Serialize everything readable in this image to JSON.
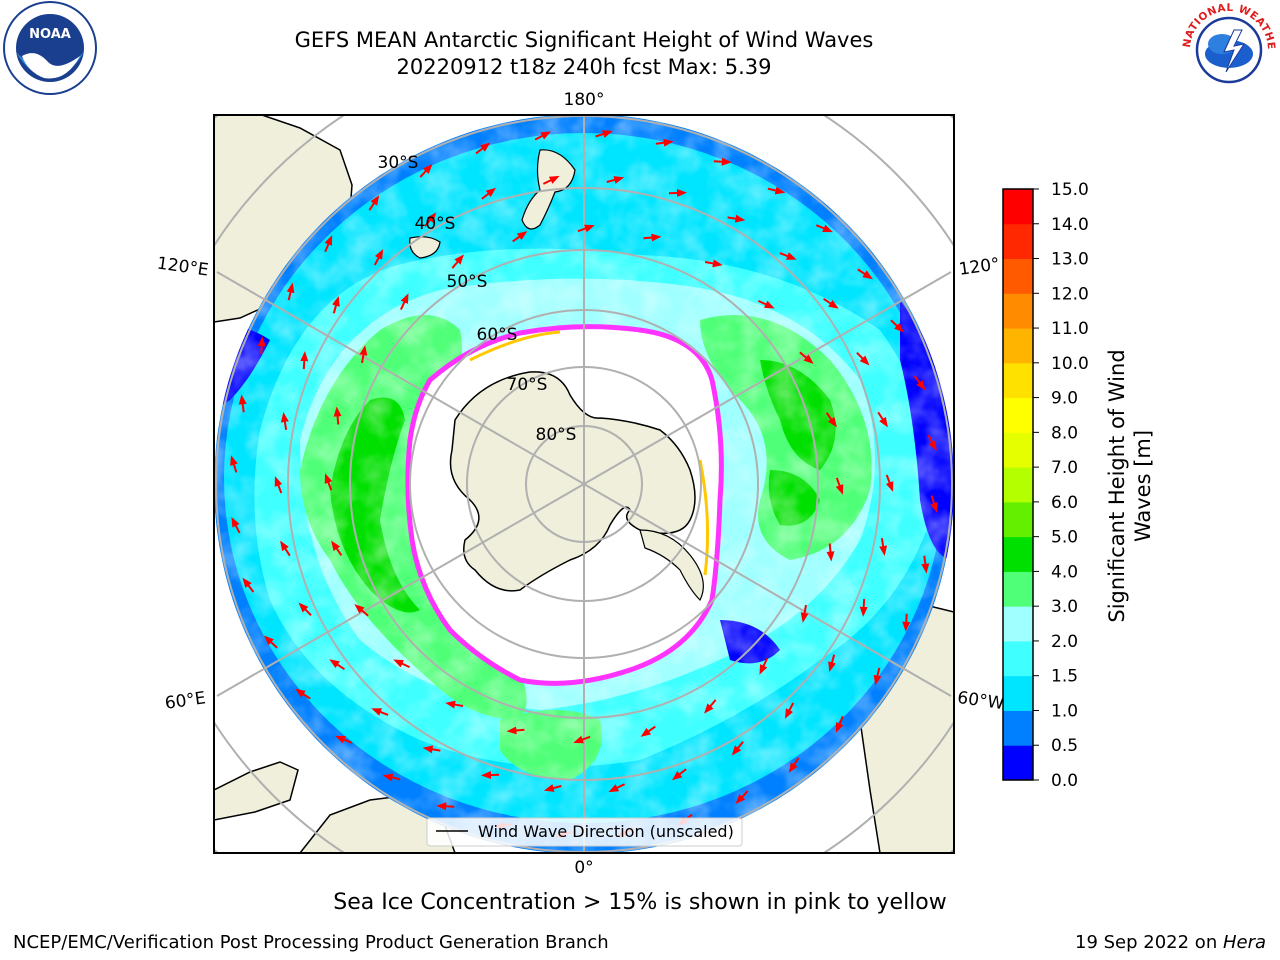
{
  "title_line1": "GEFS MEAN Antarctic Significant Height of Wind Waves",
  "title_line2": "20220912 t18z 240h fcst   Max: 5.39",
  "caption": "Sea Ice Concentration > 15% is shown in pink to yellow",
  "footer_left": "NCEP/EMC/Verification Post Processing Product Generation Branch",
  "footer_right_date": "19 Sep 2022 on ",
  "footer_right_machine": "Hera",
  "legend_label": "Wind Wave Direction (unscaled)",
  "colorbar": {
    "label_line1": "Significant Height of Wind",
    "label_line2": "Waves [m]",
    "ticks": [
      "0.0",
      "0.5",
      "1.0",
      "1.5",
      "2.0",
      "3.0",
      "4.0",
      "5.0",
      "6.0",
      "7.0",
      "8.0",
      "9.0",
      "10.0",
      "11.0",
      "12.0",
      "13.0",
      "14.0",
      "15.0"
    ],
    "colors": [
      "#0000ff",
      "#0080ff",
      "#00e5ff",
      "#40ffff",
      "#a0ffff",
      "#50ff78",
      "#00e000",
      "#64ee00",
      "#b4ff00",
      "#e6ff00",
      "#ffff00",
      "#ffe100",
      "#ffb400",
      "#ff8c00",
      "#ff5a00",
      "#ff2800",
      "#ff0000"
    ]
  },
  "map": {
    "lon_labels": [
      {
        "text": "180°"
      },
      {
        "text": "120°E"
      },
      {
        "text": "120°"
      },
      {
        "text": "60°E"
      },
      {
        "text": "60°W"
      },
      {
        "text": "0°"
      }
    ],
    "lat_labels": [
      "30°S",
      "40°S",
      "50°S",
      "60°S",
      "70°S",
      "80°S"
    ],
    "colors": {
      "land": "#efefdc",
      "arrow": "#ff0000",
      "grid": "#b0b0b0",
      "ice_edge": "#ff33ff",
      "ice_tint": "#ffc800"
    }
  },
  "logos": {
    "noaa_text": "NOAA",
    "nws_text": "NATIONAL WEATHER SERVICE"
  }
}
